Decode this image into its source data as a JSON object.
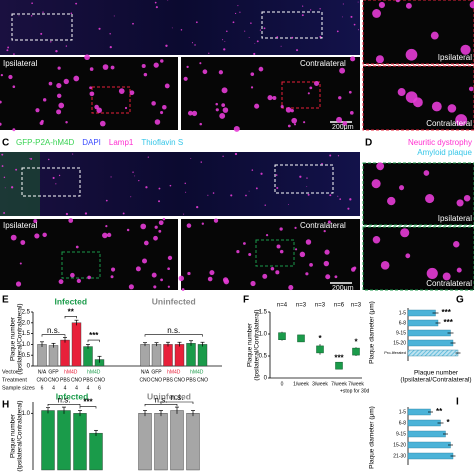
{
  "panel_a": {
    "ipsilateral": "Ipsilateral",
    "contralateral": "Contralateral",
    "scale_bar": "200μm",
    "inset_top": "Ipsilateral",
    "inset_bottom": "Contralateral"
  },
  "panel_c": {
    "letter": "C",
    "stains": [
      {
        "name": "GFP-P2A-hM4D",
        "color": "#39d353"
      },
      {
        "name": "DAPI",
        "color": "#3b4cff"
      },
      {
        "name": "Lamp1",
        "color": "#ff2fd0"
      },
      {
        "name": "Thioflavin S",
        "color": "#35c6e8"
      }
    ],
    "ipsilateral": "Ipsilateral",
    "contralateral": "Contralateral",
    "scale_bar": "200μm"
  },
  "panel_d": {
    "letter": "D",
    "legend": [
      {
        "name": "Neuritic dystrophy",
        "color": "#ff2fd0"
      },
      {
        "name": "Amyloid plaque",
        "color": "#35c6e8"
      }
    ],
    "inset_top": "Ipsilateral",
    "inset_bottom": "Contralateral"
  },
  "panel_e": {
    "letter": "E",
    "ylabel": [
      "Plaque number",
      "(Ipsilateral/Contralateral)"
    ],
    "ylim": [
      0,
      2.5
    ],
    "yticks": [
      0,
      0.5,
      {
        "value": 1,
        "label": "1.0"
      },
      1.5,
      {
        "value": 2,
        "label": "2.0"
      },
      2.5
    ],
    "row_labels": [
      "Vector",
      "Treatment",
      "Sample sizes"
    ],
    "groups": [
      {
        "name": "Infected",
        "color": "#1a9b4a",
        "vectors": [
          "N/A",
          "GFP",
          "hM4D",
          "hM4D"
        ],
        "vector_colors": [
          "#000000",
          "#000000",
          "#e8203a",
          "#1a9b4a"
        ],
        "treatments": [
          "CNO",
          "CNO",
          "PBS",
          "CNO",
          "PBS",
          "CNO"
        ],
        "sample_sizes": [
          6,
          4,
          4,
          4,
          4,
          6
        ],
        "values": [
          1.0,
          0.95,
          1.2,
          2.0,
          0.9,
          0.3
        ],
        "errors": [
          0.12,
          0.1,
          0.12,
          0.12,
          0.1,
          0.15
        ],
        "colors": [
          "#a6a6a6",
          "#a6a6a6",
          "#e8203a",
          "#e8203a",
          "#1a9b4a",
          "#1a9b4a"
        ]
      },
      {
        "name": "Uninfected",
        "color": "#888888",
        "vectors": [
          "N/A",
          "GFP",
          "hM4D",
          "hM4D"
        ],
        "vector_colors": [
          "#000000",
          "#000000",
          "#e8203a",
          "#1a9b4a"
        ],
        "treatments": [
          "CNO",
          "CNO",
          "PBS",
          "CNO",
          "PBS",
          "CNO"
        ],
        "values": [
          1.0,
          1.0,
          1.0,
          1.0,
          1.05,
          1.0
        ],
        "errors": [
          0.08,
          0.08,
          0.1,
          0.1,
          0.12,
          0.1
        ],
        "colors": [
          "#a6a6a6",
          "#a6a6a6",
          "#e8203a",
          "#e8203a",
          "#1a9b4a",
          "#1a9b4a"
        ]
      }
    ],
    "annotations": [
      "n.s.",
      "**",
      "***",
      "n.s."
    ]
  },
  "panel_f": {
    "letter": "F",
    "ylabel": [
      "Plaque number",
      "(Ipsilateral/Contralateral)"
    ],
    "ylim": [
      0,
      1.5
    ],
    "yticks": [
      0,
      0.5,
      {
        "value": 1,
        "label": "1.0"
      },
      1.5
    ],
    "categories": [
      "0",
      "1/week",
      "3/week",
      "7/week",
      "7/week"
    ],
    "note": "+stop for 30d",
    "n_labels": [
      "n=4",
      "n=3",
      "n=3",
      "n=6",
      "n=3"
    ],
    "significance": [
      null,
      null,
      "*",
      "***",
      "*"
    ],
    "values": [
      0.95,
      0.9,
      0.65,
      0.28,
      0.6
    ],
    "errors": [
      0.1,
      0.08,
      0.12,
      0.05,
      0.1
    ],
    "color": "#1a9b4a"
  },
  "panel_g": {
    "letter": "G",
    "ylabel": "Plaque diameter (μm)",
    "xlabel": [
      "Plaque number",
      "(Ipsilateral/Contralateral)"
    ],
    "xlim": [
      0,
      1.2
    ],
    "categories": [
      "1-5",
      "6-8",
      "9-15",
      "15-20",
      "Pro-liferated"
    ],
    "values": [
      0.55,
      0.6,
      0.85,
      0.9,
      1.0
    ],
    "errors": [
      0.06,
      0.05,
      0.06,
      0.05,
      0.05
    ],
    "significance": [
      "***",
      "***",
      null,
      null,
      null
    ],
    "color": "#4bb3d8"
  },
  "panel_h": {
    "letter": "H",
    "ylabel": [
      "Plaque number",
      "(Ipsilateral/Contralateral)"
    ],
    "ylim": [
      0,
      1.2
    ],
    "yticks": [
      {
        "value": 1,
        "label": "1.0"
      }
    ],
    "groups": [
      {
        "name": "Infected",
        "color": "#1a9b4a",
        "values": [
          1.05,
          1.05,
          1.0,
          0.65
        ],
        "errors": [
          0.05,
          0.06,
          0.05,
          0.05
        ],
        "colors": [
          "#1a9b4a",
          "#1a9b4a",
          "#1a9b4a",
          "#1a9b4a"
        ]
      },
      {
        "name": "Uninfected",
        "color": "#888888",
        "values": [
          1.0,
          1.0,
          1.05,
          1.0
        ],
        "errors": [
          0.05,
          0.05,
          0.06,
          0.05
        ],
        "colors": [
          "#a6a6a6",
          "#a6a6a6",
          "#a6a6a6",
          "#a6a6a6"
        ]
      }
    ],
    "annotations": [
      "n.s.",
      "***",
      "n.s.",
      "n.s."
    ]
  },
  "panel_i": {
    "letter": "I",
    "ylabel": "Plaque diameter (μm)",
    "xlim": [
      0,
      1.2
    ],
    "categories": [
      "1-5",
      "6-8",
      "9-15",
      "15-20",
      "21-30"
    ],
    "values": [
      0.45,
      0.65,
      0.75,
      0.85,
      0.9
    ],
    "errors": [
      0.05,
      0.06,
      0.05,
      0.05,
      0.05
    ],
    "significance": [
      "**",
      "*",
      null,
      null,
      null
    ],
    "color": "#4bb3d8"
  }
}
